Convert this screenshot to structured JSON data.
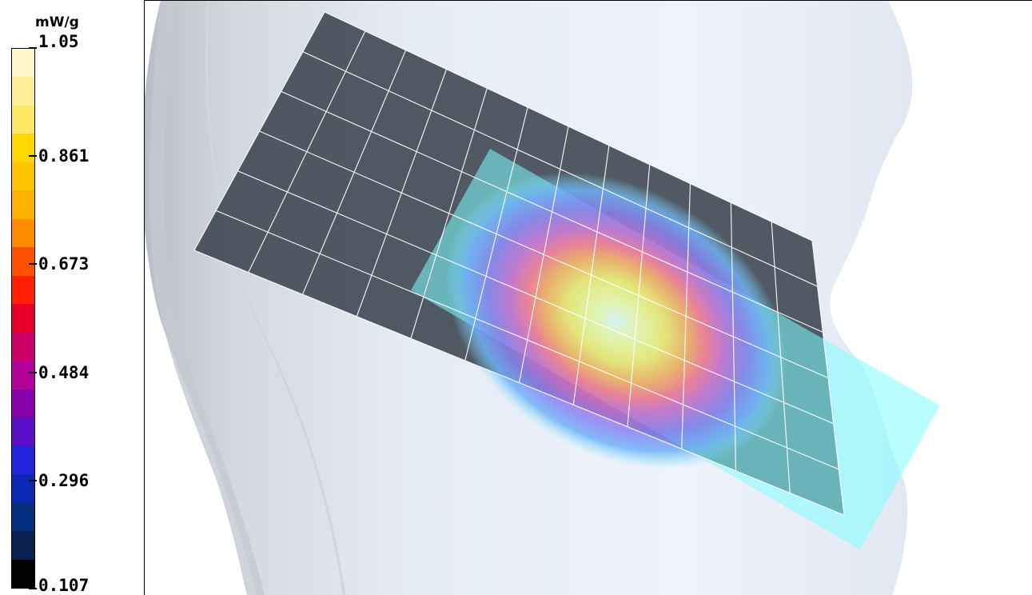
{
  "legend": {
    "unit": "mW/g",
    "ticks": [
      {
        "label": "1.05",
        "value": 1.05
      },
      {
        "label": "0.861",
        "value": 0.861
      },
      {
        "label": "0.673",
        "value": 0.673
      },
      {
        "label": "0.484",
        "value": 0.484
      },
      {
        "label": "0.296",
        "value": 0.296
      },
      {
        "label": "0.107",
        "value": 0.107
      }
    ],
    "colors": [
      "#fff7cc",
      "#ffef99",
      "#ffe866",
      "#ffd700",
      "#ffc400",
      "#ffb000",
      "#ff8c00",
      "#ff5000",
      "#ff2000",
      "#e8002a",
      "#cc0066",
      "#b20099",
      "#8800aa",
      "#5a10c8",
      "#2222dd",
      "#0a28b4",
      "#053080",
      "#0a2050",
      "#000000"
    ]
  },
  "scene": {
    "colors": {
      "background": "#ffffff",
      "head_surface": "#e8eef8",
      "head_shadow": "#c8ccd4",
      "scan_grid": "#3a4450",
      "grid_lines": "#ffffff",
      "zoom_plane": "#80ffff"
    }
  }
}
